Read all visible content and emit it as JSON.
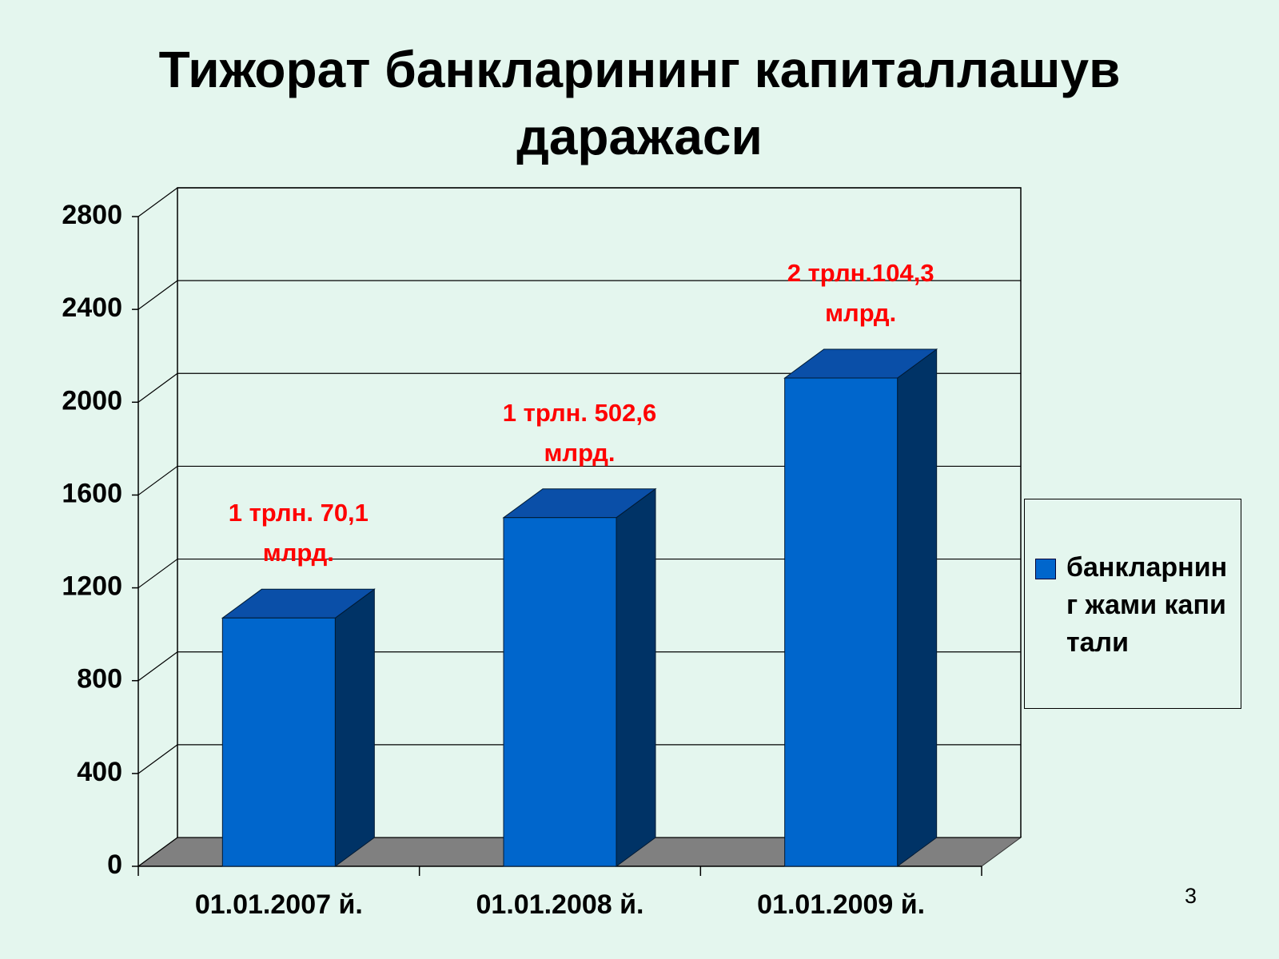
{
  "chart_data": {
    "type": "bar3d",
    "title": "Тижорат банкларининг капиталлашув даражаси",
    "categories": [
      "01.01.2007 й.",
      "01.01.2008 й.",
      "01.01.2009 й."
    ],
    "series": [
      {
        "name": "банкларнинг жами капитали",
        "color": "#0066cc",
        "values": [
          1070.1,
          1502.6,
          2104.3
        ],
        "value_labels": [
          "1 трлн. 70,1 млрд.",
          "1 трлн. 502,6 млрд.",
          "2 трлн.104,3 млрд."
        ]
      }
    ],
    "ylim": [
      0,
      2800
    ],
    "yticks": [
      0,
      400,
      800,
      1200,
      1600,
      2000,
      2400,
      2800
    ],
    "grid": true,
    "legend": "right",
    "value_label_color": "#ff0000"
  },
  "slide_number": "3"
}
